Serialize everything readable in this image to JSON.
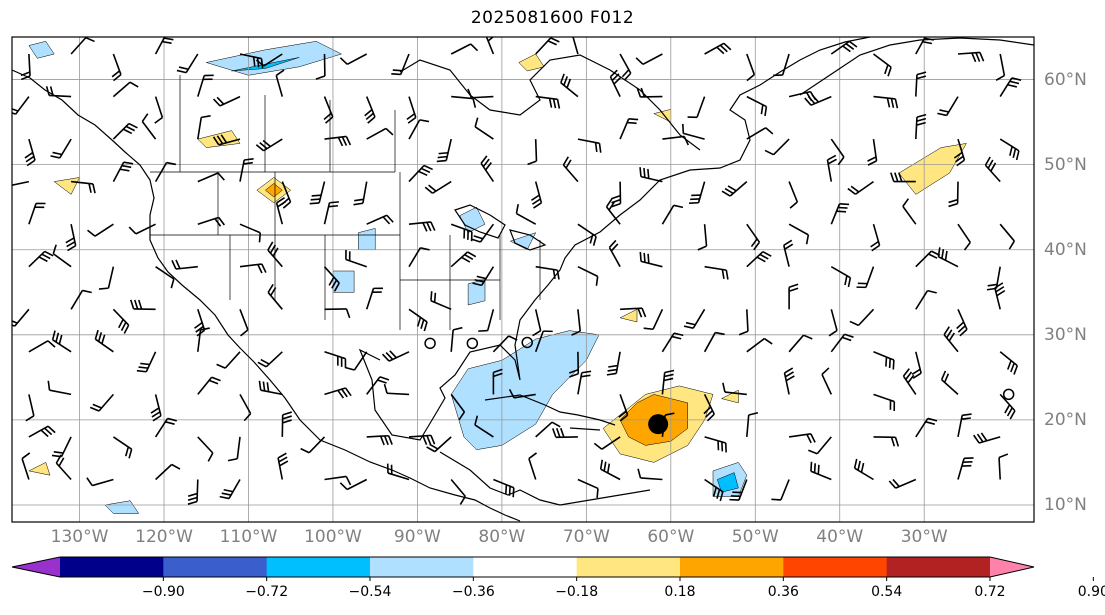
{
  "title": "2025081600 F012",
  "map": {
    "region": "North America and western North Atlantic",
    "projection": "equirectangular",
    "lon_range": [
      -138,
      -17
    ],
    "lat_range": [
      8,
      65
    ],
    "graticule_step_deg": 10,
    "longitude_labels": [
      {
        "lon": -130,
        "text": "130°W"
      },
      {
        "lon": -120,
        "text": "120°W"
      },
      {
        "lon": -110,
        "text": "110°W"
      },
      {
        "lon": -100,
        "text": "100°W"
      },
      {
        "lon": -90,
        "text": "90°W"
      },
      {
        "lon": -80,
        "text": "80°W"
      },
      {
        "lon": -70,
        "text": "70°W"
      },
      {
        "lon": -60,
        "text": "60°W"
      },
      {
        "lon": -50,
        "text": "50°W"
      },
      {
        "lon": -40,
        "text": "40°W"
      },
      {
        "lon": -30,
        "text": "30°W"
      }
    ],
    "latitude_labels": [
      {
        "lat": 60,
        "text": "60°N"
      },
      {
        "lat": 50,
        "text": "50°N"
      },
      {
        "lat": 40,
        "text": "40°N"
      },
      {
        "lat": 30,
        "text": "30°N"
      },
      {
        "lat": 20,
        "text": "20°N"
      },
      {
        "lat": 10,
        "text": "10°N"
      }
    ],
    "storm_center": {
      "lon": -61.5,
      "lat": 19.5
    },
    "small_circles": [
      {
        "lon": -88.5,
        "lat": 29.0
      },
      {
        "lon": -83.5,
        "lat": 29.0
      },
      {
        "lon": -77.0,
        "lat": 29.1
      },
      {
        "lon": -20.0,
        "lat": 23.0
      }
    ]
  },
  "colorbar": {
    "ticks": [
      "−0.90",
      "−0.72",
      "−0.54",
      "−0.36",
      "−0.18",
      "0.18",
      "0.36",
      "0.54",
      "0.72",
      "0.90"
    ],
    "colors": [
      "#9932cc",
      "#00008b",
      "#3a5fcd",
      "#00bfff",
      "#b0e0ff",
      "#ffffff",
      "#ffe680",
      "#ffa500",
      "#ff4500",
      "#b22222",
      "#ff82ab"
    ],
    "extend": "both"
  },
  "shaded_areas": [
    {
      "level": "-0.36",
      "color": "#00bfff",
      "pts": [
        [
          -84,
          22
        ],
        [
          -81,
          25
        ],
        [
          -78,
          27
        ],
        [
          -74,
          28.5
        ],
        [
          -71,
          29.5
        ],
        [
          -69,
          29
        ],
        [
          -71,
          27
        ],
        [
          -75,
          24
        ],
        [
          -78,
          20
        ],
        [
          -82,
          17.5
        ],
        [
          -84,
          19
        ]
      ]
    },
    {
      "level": "-0.54",
      "color": "#3a5fcd",
      "pts": [
        [
          -81,
          21.5
        ],
        [
          -79,
          22.5
        ],
        [
          -77,
          22
        ],
        [
          -78,
          21
        ],
        [
          -80,
          20.5
        ]
      ]
    },
    {
      "level": "-0.18",
      "color": "#b0e0ff",
      "pts": [
        [
          -84.5,
          18
        ],
        [
          -86,
          23
        ],
        [
          -84,
          26
        ],
        [
          -80,
          27
        ],
        [
          -76,
          29.5
        ],
        [
          -72,
          30.5
        ],
        [
          -68.5,
          30
        ],
        [
          -70,
          27
        ],
        [
          -74,
          23
        ],
        [
          -76,
          19.5
        ],
        [
          -80,
          17
        ],
        [
          -83,
          16.5
        ]
      ]
    },
    {
      "level": "-0.18",
      "color": "#b0e0ff",
      "pts": [
        [
          -115,
          62
        ],
        [
          -108,
          63.5
        ],
        [
          -102,
          64.5
        ],
        [
          -99,
          63
        ],
        [
          -104,
          61.5
        ],
        [
          -110,
          60.5
        ]
      ]
    },
    {
      "level": "-0.36",
      "color": "#00bfff",
      "pts": [
        [
          -112,
          61
        ],
        [
          -107,
          62
        ],
        [
          -104,
          62.6
        ],
        [
          -108,
          61.3
        ]
      ]
    },
    {
      "level": "-0.18",
      "color": "#b0e0ff",
      "pts": [
        [
          -85,
          44
        ],
        [
          -83,
          45
        ],
        [
          -82,
          43
        ],
        [
          -84,
          42
        ]
      ]
    },
    {
      "level": "-0.18",
      "color": "#b0e0ff",
      "pts": [
        [
          -79,
          41
        ],
        [
          -76,
          42
        ],
        [
          -77,
          40
        ]
      ]
    },
    {
      "level": "-0.18",
      "color": "#b0e0ff",
      "pts": [
        [
          -84,
          36
        ],
        [
          -82,
          36.5
        ],
        [
          -82,
          34
        ],
        [
          -84,
          33.5
        ]
      ]
    },
    {
      "level": "-0.18",
      "color": "#b0e0ff",
      "pts": [
        [
          -100,
          37.5
        ],
        [
          -97.5,
          37.5
        ],
        [
          -97.5,
          35
        ],
        [
          -100,
          35
        ]
      ]
    },
    {
      "level": "-0.18",
      "color": "#b0e0ff",
      "pts": [
        [
          -97,
          42
        ],
        [
          -95,
          42.5
        ],
        [
          -95,
          40
        ],
        [
          -97,
          40
        ]
      ]
    },
    {
      "level": "-0.18",
      "color": "#b0e0ff",
      "pts": [
        [
          -55,
          14
        ],
        [
          -52,
          15
        ],
        [
          -51,
          13.5
        ],
        [
          -52,
          11
        ],
        [
          -55,
          11
        ]
      ]
    },
    {
      "level": "-0.36",
      "color": "#00bfff",
      "pts": [
        [
          -54.5,
          13
        ],
        [
          -52.5,
          13.8
        ],
        [
          -52,
          12
        ],
        [
          -54,
          11.5
        ]
      ]
    },
    {
      "level": "-0.18",
      "color": "#b0e0ff",
      "pts": [
        [
          -136,
          64
        ],
        [
          -134,
          64.5
        ],
        [
          -133,
          63
        ],
        [
          -135,
          62.5
        ]
      ]
    },
    {
      "level": "-0.18",
      "color": "#b0e0ff",
      "pts": [
        [
          -127,
          10
        ],
        [
          -124,
          10.5
        ],
        [
          -123,
          9
        ],
        [
          -126,
          9
        ]
      ]
    },
    {
      "level": "0.18",
      "color": "#ffe680",
      "pts": [
        [
          -68,
          19
        ],
        [
          -63,
          23
        ],
        [
          -59,
          24
        ],
        [
          -55,
          23
        ],
        [
          -56,
          20
        ],
        [
          -58,
          17
        ],
        [
          -62,
          15
        ],
        [
          -66,
          16
        ]
      ]
    },
    {
      "level": "0.36",
      "color": "#ffa500",
      "pts": [
        [
          -66,
          20
        ],
        [
          -64,
          22
        ],
        [
          -62,
          23
        ],
        [
          -60,
          22.5
        ],
        [
          -58,
          22
        ],
        [
          -58,
          19
        ],
        [
          -60,
          17.5
        ],
        [
          -63,
          17
        ],
        [
          -65,
          18
        ]
      ]
    },
    {
      "level": "0.18",
      "color": "#ffe680",
      "pts": [
        [
          -109,
          47
        ],
        [
          -107,
          48.5
        ],
        [
          -105,
          47
        ],
        [
          -107,
          45.5
        ]
      ]
    },
    {
      "level": "0.36",
      "color": "#ffa500",
      "pts": [
        [
          -108,
          47
        ],
        [
          -107,
          47.8
        ],
        [
          -106,
          47
        ],
        [
          -107,
          46.2
        ]
      ]
    },
    {
      "level": "0.18",
      "color": "#ffe680",
      "pts": [
        [
          -33,
          49
        ],
        [
          -28,
          52
        ],
        [
          -25,
          52.5
        ],
        [
          -27,
          49
        ],
        [
          -31,
          46.5
        ]
      ]
    },
    {
      "level": "0.18",
      "color": "#ffe680",
      "pts": [
        [
          -133,
          48
        ],
        [
          -130,
          48.5
        ],
        [
          -131,
          46.5
        ]
      ]
    },
    {
      "level": "0.18",
      "color": "#ffe680",
      "pts": [
        [
          -116,
          53
        ],
        [
          -112,
          54
        ],
        [
          -111,
          52.5
        ],
        [
          -115,
          52
        ]
      ]
    },
    {
      "level": "0.18",
      "color": "#ffe680",
      "pts": [
        [
          -78,
          62
        ],
        [
          -76,
          63
        ],
        [
          -75,
          61.5
        ],
        [
          -77,
          61
        ]
      ]
    },
    {
      "level": "0.18",
      "color": "#ffe680",
      "pts": [
        [
          -66,
          32
        ],
        [
          -64,
          33
        ],
        [
          -64,
          31.5
        ]
      ]
    },
    {
      "level": "0.18",
      "color": "#ffe680",
      "pts": [
        [
          -62,
          56
        ],
        [
          -60,
          56.5
        ],
        [
          -60,
          55
        ]
      ]
    },
    {
      "level": "0.18",
      "color": "#ffe680",
      "pts": [
        [
          -54,
          22.5
        ],
        [
          -52,
          23.5
        ],
        [
          -52,
          22
        ]
      ]
    },
    {
      "level": "0.18",
      "color": "#ffe680",
      "pts": [
        [
          -136,
          14
        ],
        [
          -134,
          15
        ],
        [
          -133.5,
          13.5
        ]
      ]
    }
  ],
  "wind_barb_grid": {
    "lon_step_deg": 5,
    "lat_step_deg": 5,
    "units": "kt",
    "legend": "wind barbs"
  }
}
